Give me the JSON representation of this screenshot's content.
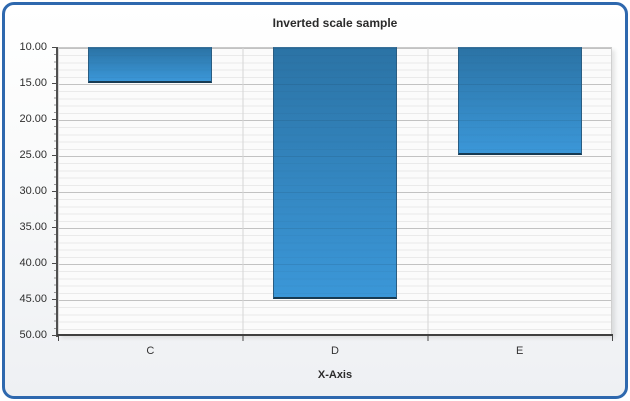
{
  "chart_title": "Inverted scale sample",
  "chart_data": {
    "type": "bar",
    "title": "Inverted scale sample",
    "categories": [
      "C",
      "D",
      "E"
    ],
    "values": [
      15,
      45,
      25
    ],
    "xlabel": "X-Axis",
    "ylabel": "",
    "y_axis": {
      "min": 10,
      "max": 50,
      "major_step": 5,
      "minor_step": 1,
      "inverted": true,
      "tick_labels": [
        "10.00",
        "15.00",
        "20.00",
        "25.00",
        "30.00",
        "35.00",
        "40.00",
        "45.00",
        "50.00"
      ]
    },
    "bar_base_value": 10,
    "grid": true,
    "legend_position": "none",
    "colors": {
      "frame_border": "#2e68ae",
      "bar_gradient_top": "#2b73a5",
      "bar_gradient_bottom": "#3b97d8",
      "bar_border": "#2a5d82",
      "bar_border_dark": "#173a52",
      "major_grid": "#c2c2c2",
      "minor_grid": "#eaeaea",
      "axis_line": "#4f4f4f"
    }
  }
}
